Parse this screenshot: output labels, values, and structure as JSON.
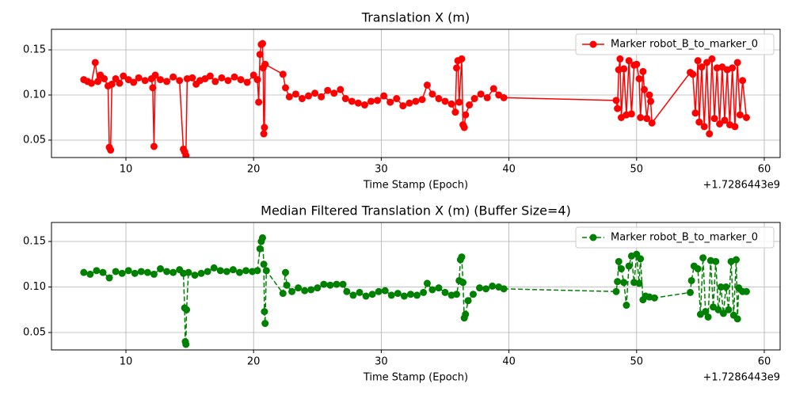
{
  "chart_data": [
    {
      "type": "line",
      "title": "Translation X (m)",
      "xlabel": "Time Stamp (Epoch)",
      "x_offset_label": "+1.7286443e9",
      "xlim": [
        4.17,
        61.24
      ],
      "ylim": [
        0.0307,
        0.1728
      ],
      "xticks": [
        10,
        20,
        30,
        40,
        50,
        60
      ],
      "yticks": [
        0.05,
        0.1,
        0.15
      ],
      "grid": true,
      "legend": "upper right",
      "x": [
        6.7,
        7.0,
        7.3,
        7.6,
        7.8,
        8.0,
        8.3,
        8.6,
        8.7,
        8.8,
        8.9,
        9.2,
        9.5,
        9.8,
        10.2,
        10.6,
        11.0,
        11.5,
        12.0,
        12.1,
        12.2,
        12.3,
        12.7,
        13.2,
        13.7,
        14.2,
        14.5,
        14.6,
        14.7,
        14.8,
        15.2,
        15.5,
        15.8,
        16.2,
        16.6,
        17.0,
        17.5,
        18.0,
        18.5,
        19.0,
        19.5,
        20.0,
        20.3,
        20.4,
        20.5,
        20.6,
        20.7,
        20.75,
        20.8,
        20.85,
        20.9,
        22.3,
        22.5,
        22.8,
        23.3,
        23.8,
        24.3,
        24.8,
        25.3,
        25.8,
        26.3,
        26.8,
        27.2,
        27.7,
        28.2,
        28.7,
        29.2,
        29.7,
        30.2,
        30.7,
        31.2,
        31.7,
        32.2,
        32.7,
        33.2,
        33.6,
        34.0,
        34.5,
        35.0,
        35.5,
        35.8,
        35.9,
        36.0,
        36.1,
        36.3,
        36.4,
        36.5,
        36.6,
        36.9,
        37.3,
        37.8,
        38.3,
        38.8,
        39.2,
        39.6,
        48.4,
        48.5,
        48.6,
        48.7,
        48.8,
        49.0,
        49.2,
        49.4,
        49.6,
        49.8,
        50.0,
        50.2,
        50.3,
        50.5,
        50.6,
        50.8,
        51.0,
        51.1,
        51.2,
        54.2,
        54.4,
        54.6,
        54.8,
        54.9,
        55.1,
        55.3,
        55.5,
        55.7,
        55.9,
        56.1,
        56.3,
        56.5,
        56.7,
        56.9,
        57.1,
        57.3,
        57.5,
        57.7,
        57.9,
        58.1,
        58.3,
        58.6
      ],
      "series": [
        {
          "name": "Marker robot_B_to_marker_0",
          "color": "#ff0000",
          "linestyle": "solid",
          "values": [
            0.117,
            0.115,
            0.113,
            0.136,
            0.115,
            0.122,
            0.118,
            0.11,
            0.042,
            0.039,
            0.112,
            0.118,
            0.113,
            0.121,
            0.117,
            0.114,
            0.119,
            0.116,
            0.118,
            0.108,
            0.043,
            0.122,
            0.117,
            0.115,
            0.12,
            0.116,
            0.04,
            0.037,
            0.033,
            0.118,
            0.119,
            0.112,
            0.116,
            0.118,
            0.121,
            0.115,
            0.119,
            0.116,
            0.12,
            0.117,
            0.114,
            0.122,
            0.117,
            0.092,
            0.145,
            0.156,
            0.157,
            0.13,
            0.057,
            0.064,
            0.134,
            0.123,
            0.108,
            0.098,
            0.101,
            0.096,
            0.099,
            0.102,
            0.098,
            0.105,
            0.102,
            0.106,
            0.096,
            0.093,
            0.091,
            0.089,
            0.093,
            0.094,
            0.099,
            0.092,
            0.096,
            0.088,
            0.091,
            0.093,
            0.095,
            0.111,
            0.101,
            0.096,
            0.093,
            0.09,
            0.081,
            0.13,
            0.138,
            0.092,
            0.14,
            0.067,
            0.064,
            0.078,
            0.089,
            0.096,
            0.101,
            0.097,
            0.107,
            0.1,
            0.097,
            0.094,
            0.085,
            0.128,
            0.14,
            0.075,
            0.129,
            0.078,
            0.138,
            0.079,
            0.133,
            0.134,
            0.118,
            0.075,
            0.126,
            0.106,
            0.074,
            0.1,
            0.093,
            0.069,
            0.125,
            0.123,
            0.08,
            0.138,
            0.07,
            0.131,
            0.065,
            0.136,
            0.057,
            0.14,
            0.074,
            0.13,
            0.068,
            0.131,
            0.072,
            0.128,
            0.067,
            0.13,
            0.065,
            0.136,
            0.078,
            0.116,
            0.075
          ]
        }
      ]
    },
    {
      "type": "line",
      "title": "Median Filtered Translation X (m) (Buffer Size=4)",
      "xlabel": "Time Stamp (Epoch)",
      "x_offset_label": "+1.7286443e9",
      "xlim": [
        4.17,
        61.24
      ],
      "ylim": [
        0.0309,
        0.1709
      ],
      "xticks": [
        10,
        20,
        30,
        40,
        50,
        60
      ],
      "yticks": [
        0.05,
        0.1,
        0.15
      ],
      "grid": true,
      "legend": "upper right",
      "x": [
        6.7,
        7.2,
        7.7,
        8.2,
        8.7,
        9.2,
        9.7,
        10.2,
        10.7,
        11.2,
        11.7,
        12.2,
        12.7,
        13.2,
        13.7,
        14.2,
        14.5,
        14.6,
        14.65,
        14.7,
        14.75,
        14.9,
        15.4,
        15.9,
        16.4,
        16.9,
        17.4,
        17.9,
        18.4,
        18.9,
        19.4,
        19.9,
        20.3,
        20.5,
        20.6,
        20.7,
        20.8,
        20.85,
        20.9,
        21.0,
        22.3,
        22.5,
        22.6,
        23.0,
        23.5,
        24.0,
        24.5,
        25.0,
        25.5,
        26.0,
        26.5,
        27.0,
        27.3,
        27.8,
        28.3,
        28.8,
        29.3,
        29.8,
        30.3,
        30.8,
        31.3,
        31.8,
        32.3,
        32.8,
        33.3,
        33.6,
        34.0,
        34.5,
        35.0,
        35.5,
        35.9,
        36.1,
        36.2,
        36.3,
        36.4,
        36.5,
        36.6,
        36.8,
        37.2,
        37.7,
        38.2,
        38.7,
        39.2,
        39.6,
        48.4,
        48.5,
        48.6,
        48.8,
        49.0,
        49.2,
        49.4,
        49.6,
        49.8,
        50.0,
        50.2,
        50.3,
        50.5,
        50.7,
        51.0,
        51.4,
        54.2,
        54.3,
        54.5,
        54.8,
        55.0,
        55.2,
        55.4,
        55.6,
        55.8,
        56.0,
        56.2,
        56.4,
        56.6,
        56.8,
        57.0,
        57.2,
        57.4,
        57.6,
        57.8,
        57.9,
        58.0,
        58.3,
        58.6
      ],
      "series": [
        {
          "name": "Marker robot_B_to_marker_0",
          "color": "#008000",
          "linestyle": "dashed",
          "values": [
            0.116,
            0.114,
            0.118,
            0.116,
            0.11,
            0.117,
            0.115,
            0.118,
            0.115,
            0.117,
            0.116,
            0.114,
            0.12,
            0.117,
            0.116,
            0.119,
            0.115,
            0.077,
            0.04,
            0.037,
            0.075,
            0.116,
            0.113,
            0.115,
            0.117,
            0.121,
            0.118,
            0.117,
            0.119,
            0.116,
            0.118,
            0.117,
            0.118,
            0.142,
            0.15,
            0.154,
            0.125,
            0.073,
            0.06,
            0.118,
            0.093,
            0.116,
            0.102,
            0.095,
            0.099,
            0.096,
            0.097,
            0.099,
            0.103,
            0.102,
            0.103,
            0.103,
            0.095,
            0.091,
            0.094,
            0.09,
            0.092,
            0.095,
            0.096,
            0.091,
            0.093,
            0.09,
            0.092,
            0.091,
            0.094,
            0.104,
            0.097,
            0.099,
            0.094,
            0.091,
            0.092,
            0.107,
            0.13,
            0.133,
            0.105,
            0.066,
            0.07,
            0.085,
            0.092,
            0.099,
            0.098,
            0.101,
            0.1,
            0.098,
            0.095,
            0.106,
            0.128,
            0.12,
            0.105,
            0.08,
            0.123,
            0.134,
            0.105,
            0.136,
            0.104,
            0.131,
            0.086,
            0.09,
            0.089,
            0.088,
            0.094,
            0.107,
            0.123,
            0.12,
            0.07,
            0.132,
            0.073,
            0.067,
            0.129,
            0.078,
            0.128,
            0.075,
            0.1,
            0.071,
            0.1,
            0.075,
            0.128,
            0.069,
            0.13,
            0.065,
            0.099,
            0.095,
            0.095
          ]
        }
      ]
    }
  ]
}
